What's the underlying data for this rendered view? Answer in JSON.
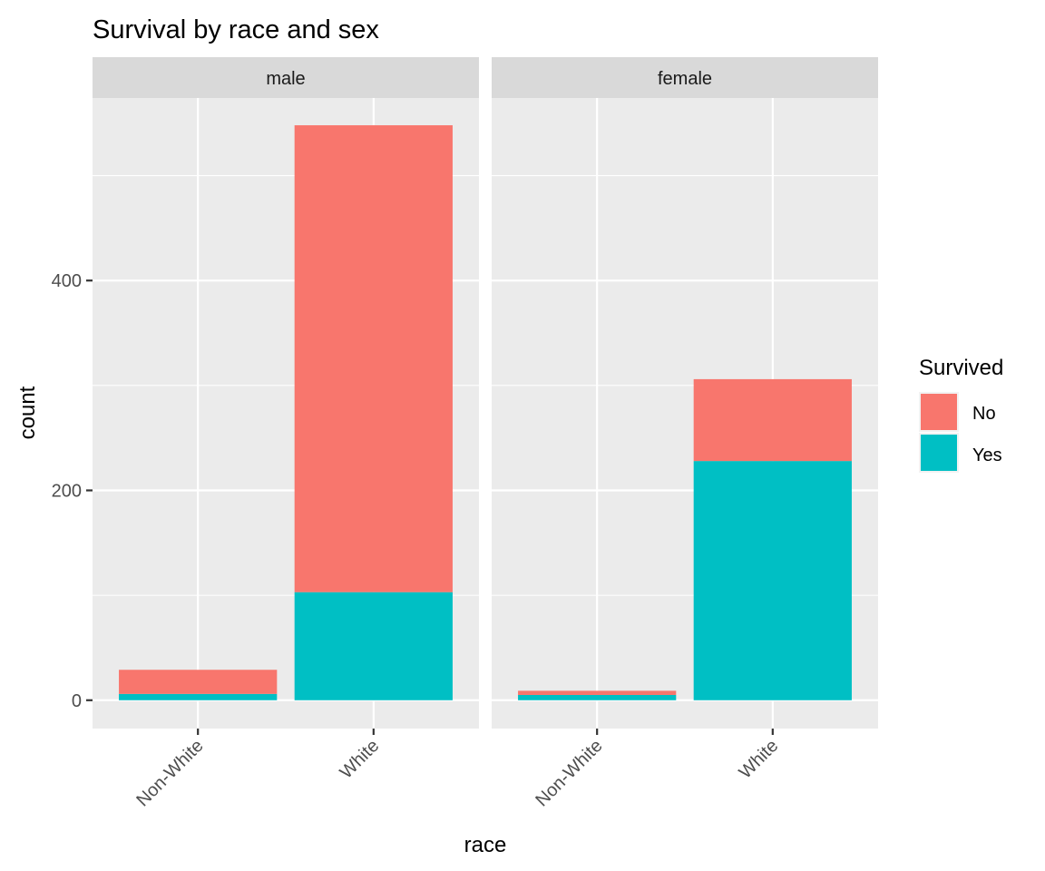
{
  "chart_data": {
    "type": "bar",
    "stacked": true,
    "title": "Survival by race and sex",
    "xlabel": "race",
    "ylabel": "count",
    "ylim": [
      -27,
      574
    ],
    "y_ticks": [
      0,
      200,
      400
    ],
    "categories": [
      "Non-White",
      "White"
    ],
    "facets": [
      {
        "label": "male",
        "series": [
          {
            "name": "No",
            "values": [
              23,
              445
            ]
          },
          {
            "name": "Yes",
            "values": [
              6,
              103
            ]
          }
        ]
      },
      {
        "label": "female",
        "series": [
          {
            "name": "No",
            "values": [
              4,
              78
            ]
          },
          {
            "name": "Yes",
            "values": [
              5,
              228
            ]
          }
        ]
      }
    ],
    "legend": {
      "title": "Survived",
      "placement": "right",
      "entries": [
        {
          "label": "No",
          "color": "#F8766D"
        },
        {
          "label": "Yes",
          "color": "#00BFC4"
        }
      ]
    },
    "grid": true
  }
}
